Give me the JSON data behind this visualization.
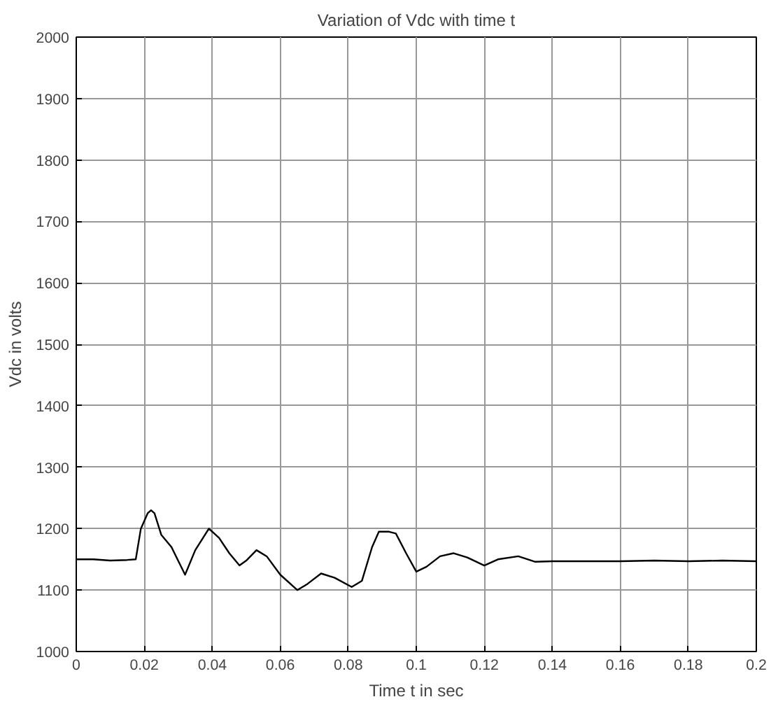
{
  "chart_data": {
    "type": "line",
    "title": "Variation of Vdc with time t",
    "xlabel": "Time t in sec",
    "ylabel": "Vdc in volts",
    "x": [
      0,
      0.005,
      0.01,
      0.015,
      0.0175,
      0.019,
      0.021,
      0.022,
      0.023,
      0.025,
      0.028,
      0.032,
      0.035,
      0.039,
      0.042,
      0.045,
      0.048,
      0.05,
      0.053,
      0.056,
      0.06,
      0.065,
      0.068,
      0.072,
      0.076,
      0.081,
      0.084,
      0.087,
      0.089,
      0.092,
      0.094,
      0.097,
      0.1,
      0.103,
      0.107,
      0.111,
      0.115,
      0.12,
      0.124,
      0.13,
      0.135,
      0.14,
      0.15,
      0.16,
      0.17,
      0.18,
      0.19,
      0.2
    ],
    "series": [
      {
        "color": "#000000",
        "values": [
          1150,
          1150,
          1148,
          1149,
          1150,
          1200,
          1225,
          1230,
          1225,
          1190,
          1170,
          1125,
          1165,
          1200,
          1185,
          1160,
          1140,
          1148,
          1165,
          1155,
          1125,
          1100,
          1110,
          1127,
          1120,
          1105,
          1115,
          1170,
          1195,
          1195,
          1192,
          1160,
          1130,
          1138,
          1155,
          1160,
          1153,
          1140,
          1150,
          1155,
          1146,
          1147,
          1147,
          1147,
          1148,
          1147,
          1148,
          1147
        ]
      }
    ],
    "xlim": [
      0,
      0.2
    ],
    "ylim": [
      1000,
      2000
    ],
    "xticks": [
      0,
      0.02,
      0.04,
      0.06,
      0.08,
      0.1,
      0.12,
      0.14,
      0.16,
      0.18,
      0.2
    ],
    "yticks": [
      1000,
      1100,
      1200,
      1300,
      1400,
      1500,
      1600,
      1700,
      1800,
      1900,
      2000
    ],
    "grid": true,
    "marker": "none",
    "line_style": "solid"
  }
}
